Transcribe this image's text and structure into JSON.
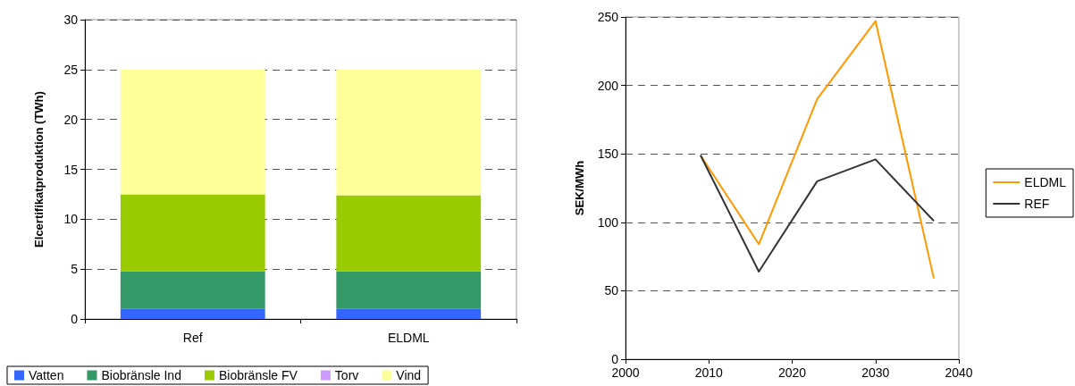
{
  "chart_data": [
    {
      "type": "bar",
      "ylabel": "Elcertifikatproduktion (TWh)",
      "categories": [
        "Ref",
        "ELDML"
      ],
      "stacked": true,
      "ylim": [
        0,
        30
      ],
      "yticks": [
        0,
        5,
        10,
        15,
        20,
        25,
        30
      ],
      "grid": "y",
      "legend": "bottom",
      "series": [
        {
          "name": "Vatten",
          "color": "#3366ff",
          "values": [
            1.0,
            1.0
          ]
        },
        {
          "name": "Biobränsle Ind",
          "color": "#339966",
          "values": [
            3.8,
            3.8
          ]
        },
        {
          "name": "Biobränsle FV",
          "color": "#99cc00",
          "values": [
            7.7,
            7.6
          ]
        },
        {
          "name": "Torv",
          "color": "#cc99ff",
          "values": [
            0,
            0
          ]
        },
        {
          "name": "Vind",
          "color": "#ffff99",
          "values": [
            12.5,
            12.6
          ]
        }
      ]
    },
    {
      "type": "line",
      "ylabel": "SEK/MWh",
      "xlim": [
        2000,
        2040
      ],
      "xticks": [
        2000,
        2010,
        2020,
        2030,
        2040
      ],
      "ylim": [
        0,
        250
      ],
      "yticks": [
        0,
        50,
        100,
        150,
        200,
        250
      ],
      "grid": "y",
      "legend": "right",
      "marker": "none",
      "line_style": "solid",
      "series": [
        {
          "name": "ELDML",
          "color": "#ff9900",
          "x": [
            2009,
            2016,
            2023,
            2030,
            2037
          ],
          "values": [
            149,
            84,
            190,
            247,
            59
          ]
        },
        {
          "name": "REF",
          "color": "#333333",
          "x": [
            2009,
            2016,
            2023,
            2030,
            2037
          ],
          "values": [
            149,
            64,
            130,
            146,
            101
          ]
        }
      ]
    }
  ]
}
